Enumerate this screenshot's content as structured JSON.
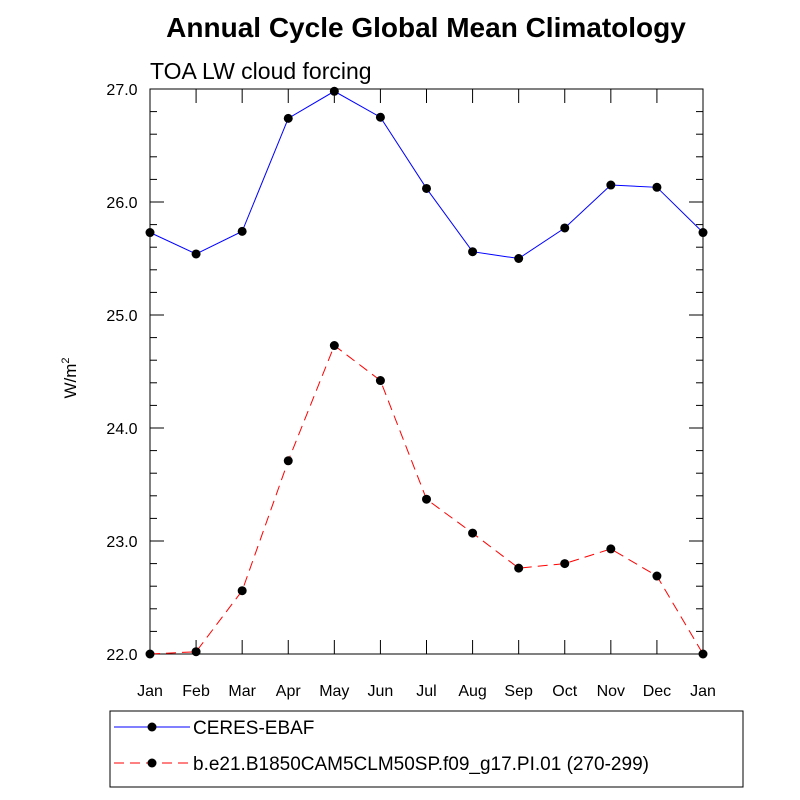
{
  "chart_data": {
    "type": "line",
    "title": "Annual Cycle Global Mean Climatology",
    "subtitle": "TOA LW cloud forcing",
    "ylabel": "W/m",
    "ylabel_sup": "2",
    "xlabel": "",
    "categories": [
      "Jan",
      "Feb",
      "Mar",
      "Apr",
      "May",
      "Jun",
      "Jul",
      "Aug",
      "Sep",
      "Oct",
      "Nov",
      "Dec",
      "Jan"
    ],
    "ylim": [
      22.0,
      27.0
    ],
    "yticks": [
      "22.0",
      "23.0",
      "24.0",
      "25.0",
      "26.0",
      "27.0"
    ],
    "series": [
      {
        "name": "CERES-EBAF",
        "color": "#0000ff",
        "dash": "solid",
        "values": [
          25.73,
          25.54,
          25.74,
          26.74,
          26.98,
          26.75,
          26.12,
          25.56,
          25.5,
          25.77,
          26.15,
          26.13,
          25.73
        ]
      },
      {
        "name": "b.e21.B1850CAM5CLM50SP.f09_g17.PI.01 (270-299)",
        "color": "#ff0000",
        "dash": "dashed",
        "values": [
          22.0,
          22.02,
          22.56,
          23.71,
          24.73,
          24.42,
          23.37,
          23.07,
          22.76,
          22.8,
          22.93,
          22.69,
          22.0
        ]
      }
    ],
    "grid": false,
    "legend_position": "bottom"
  }
}
